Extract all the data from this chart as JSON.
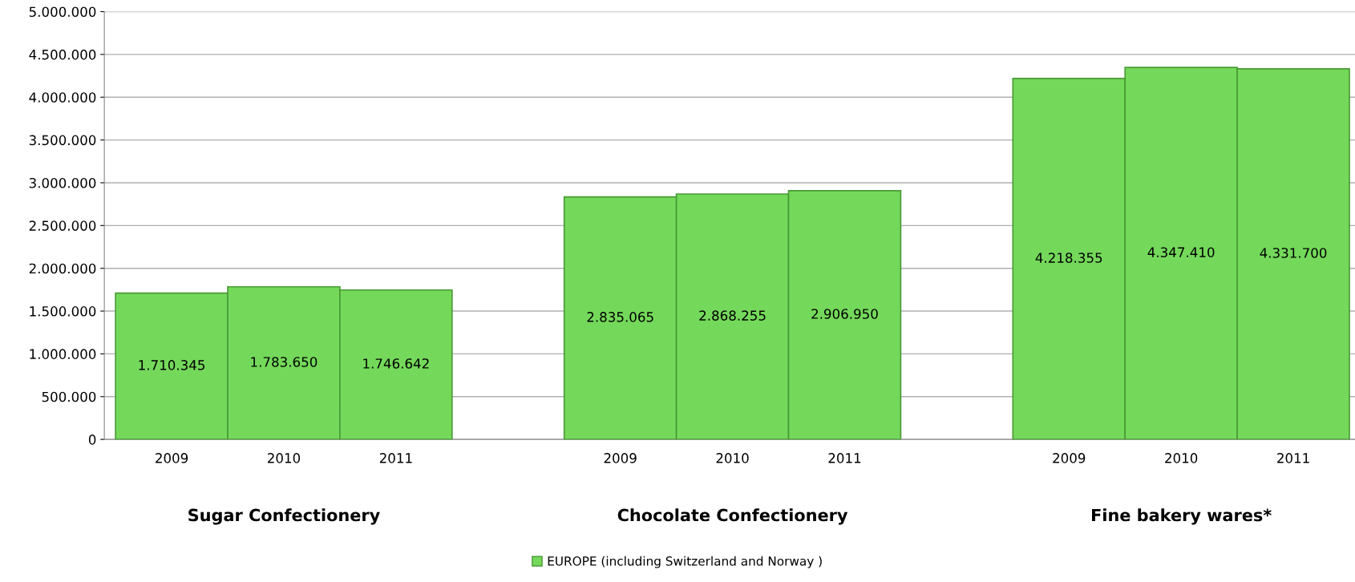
{
  "chart_data": {
    "type": "bar",
    "categories": [
      "2009",
      "2010",
      "2011",
      null,
      "2009",
      "2010",
      "2011",
      null,
      "2009",
      "2010",
      "2011"
    ],
    "series": [
      {
        "name": "EUROPE (including Switzerland and Norway )",
        "color": "#74d95a",
        "values": [
          1710345,
          1783650,
          1746642,
          null,
          2835065,
          2868255,
          2906950,
          null,
          4218355,
          4347410,
          4331700
        ],
        "value_labels": [
          "1.710.345",
          "1.783.650",
          "1.746.642",
          null,
          "2.835.065",
          "2.868.255",
          "2.906.950",
          null,
          "4.218.355",
          "4.347.410",
          "4.331.700"
        ]
      }
    ],
    "ylim": [
      0,
      5000000
    ],
    "yticks": [
      {
        "value": 0,
        "label": "0"
      },
      {
        "value": 500000,
        "label": "500.000"
      },
      {
        "value": 1000000,
        "label": "1.000.000"
      },
      {
        "value": 1500000,
        "label": "1.500.000"
      },
      {
        "value": 2000000,
        "label": "2.000.000"
      },
      {
        "value": 2500000,
        "label": "2.500.000"
      },
      {
        "value": 3000000,
        "label": "3.000.000"
      },
      {
        "value": 3500000,
        "label": "3.500.000"
      },
      {
        "value": 4000000,
        "label": "4.000.000"
      },
      {
        "value": 4500000,
        "label": "4.500.000"
      },
      {
        "value": 5000000,
        "label": "5.000.000"
      }
    ],
    "annotations": [
      "Sugar Confectionery",
      "Chocolate Confectionery",
      "Fine bakery wares*"
    ],
    "grid": "y",
    "legend": "bottom"
  }
}
